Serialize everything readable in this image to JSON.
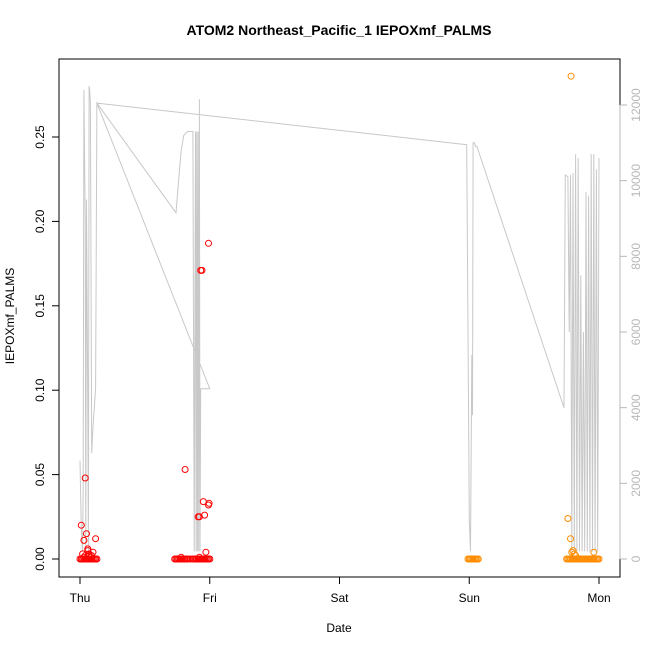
{
  "chart_data": {
    "type": "scatter",
    "title": "ATOM2 Northeast_Pacific_1 IEPOXmf_PALMS",
    "xlabel": "Date",
    "ylabel": "IEPOXmf_PALMS",
    "x_unit": "days since Thursday 00:00",
    "x_ticks": [
      {
        "label": "Thu",
        "value": 0
      },
      {
        "label": "Fri",
        "value": 1
      },
      {
        "label": "Sat",
        "value": 2
      },
      {
        "label": "Sun",
        "value": 3
      },
      {
        "label": "Mon",
        "value": 4
      }
    ],
    "ylim": [
      0,
      0.28
    ],
    "y_ticks": [
      "0.00",
      "0.05",
      "0.10",
      "0.15",
      "0.20",
      "0.25"
    ],
    "y2_label": "",
    "y2lim": [
      0,
      13000
    ],
    "y2_ticks": [
      "0",
      "2000",
      "4000",
      "6000",
      "8000",
      "10000",
      "12000"
    ],
    "colors": {
      "series_red": "#ff0000",
      "series_orange": "#ff8c00",
      "altitude": "#c8c8c8"
    },
    "series": [
      {
        "marker": "open-circle",
        "color": "#ff0000",
        "x": [
          0.0,
          0.01,
          0.02,
          0.03,
          0.04,
          0.05,
          0.06,
          0.07,
          0.08,
          0.09,
          0.1,
          0.11,
          0.12,
          0.13,
          0.01,
          0.02,
          0.03,
          0.04,
          0.05,
          0.06,
          0.07,
          0.08,
          0.09,
          0.12,
          0.04,
          0.06,
          0.1,
          0.03,
          0.07,
          0.73,
          0.74,
          0.75,
          0.76,
          0.77,
          0.78,
          0.79,
          0.8,
          0.81,
          0.82,
          0.83,
          0.85,
          0.87,
          0.88,
          0.89,
          0.9,
          0.91,
          0.92,
          0.93,
          0.94,
          0.95,
          0.96,
          0.97,
          0.98,
          0.99,
          1.0,
          0.78,
          0.81,
          0.91,
          0.92,
          0.93,
          0.94,
          0.95,
          0.96,
          0.99,
          0.995,
          0.92,
          0.99,
          0.97
        ],
        "y": [
          0,
          0,
          0,
          0,
          0,
          0,
          0,
          0,
          0,
          0,
          0,
          0,
          0,
          0,
          0.02,
          0.003,
          0.011,
          0.002,
          0.015,
          0.005,
          0.003,
          0.001,
          0.002,
          0.012,
          0.048,
          0.006,
          0.004,
          0.001,
          0.002,
          0,
          0,
          0,
          0,
          0,
          0,
          0,
          0,
          0,
          0,
          0,
          0,
          0,
          0,
          0,
          0,
          0,
          0,
          0,
          0,
          0,
          0,
          0,
          0,
          0,
          0,
          0.001,
          0.053,
          0.025,
          0.025,
          0.171,
          0.171,
          0.034,
          0.026,
          0.032,
          0.033,
          0.001,
          0.187,
          0.004
        ]
      },
      {
        "marker": "open-circle",
        "color": "#ff8c00",
        "x": [
          2.99,
          3.0,
          3.01,
          3.02,
          3.03,
          3.04,
          3.05,
          3.06,
          3.07,
          3.75,
          3.76,
          3.77,
          3.78,
          3.79,
          3.8,
          3.81,
          3.82,
          3.83,
          3.84,
          3.85,
          3.86,
          3.87,
          3.88,
          3.89,
          3.9,
          3.91,
          3.92,
          3.93,
          3.94,
          3.95,
          3.96,
          3.97,
          3.98,
          3.99,
          4.0,
          3.76,
          3.78,
          3.79,
          3.8,
          3.81,
          3.82,
          3.96,
          3.785
        ],
        "y": [
          0,
          0,
          0,
          0,
          0,
          0,
          0,
          0,
          0,
          0,
          0,
          0,
          0,
          0,
          0,
          0,
          0,
          0,
          0,
          0,
          0,
          0,
          0,
          0,
          0,
          0,
          0,
          0,
          0,
          0,
          0,
          0,
          0,
          0,
          0,
          0.024,
          0.012,
          0.004,
          0.005,
          0.003,
          0.002,
          0.004,
          0.286
        ]
      },
      {
        "type": "line",
        "axis": "right",
        "color": "#c8c8c8",
        "x": [
          0.0,
          0.01,
          0.02,
          0.025,
          0.03,
          0.04,
          0.045,
          0.05,
          0.06,
          0.065,
          0.07,
          0.075,
          0.08,
          0.09,
          0.1,
          0.12,
          0.13,
          0.74,
          0.76,
          0.78,
          0.8,
          0.83,
          0.87,
          0.88,
          0.89,
          0.895,
          0.9,
          0.905,
          0.91,
          0.915,
          0.92,
          0.925,
          0.93,
          0.94,
          0.95,
          0.955,
          0.96,
          0.965,
          0.97,
          0.975,
          0.98,
          0.99,
          1.0,
          0.13,
          2.98,
          3.0,
          3.01,
          3.02,
          3.025,
          3.03,
          3.04,
          3.05,
          3.06,
          3.06,
          3.73,
          3.74,
          3.76,
          3.77,
          3.78,
          3.79,
          3.8,
          3.81,
          3.82,
          3.83,
          3.84,
          3.85,
          3.86,
          3.87,
          3.88,
          3.89,
          3.9,
          3.91,
          3.92,
          3.93,
          3.94,
          3.95,
          3.96,
          3.97,
          3.98,
          3.99,
          4.0
        ],
        "y": [
          2600,
          800,
          200,
          2000,
          12400,
          9000,
          200,
          9500,
          4000,
          200,
          12500,
          12400,
          12050,
          2800,
          3500,
          4500,
          12050,
          9150,
          10000,
          10800,
          11200,
          11300,
          11300,
          200,
          11300,
          200,
          11300,
          200,
          11300,
          200,
          12150,
          200,
          4500,
          4500,
          4500,
          4500,
          4500,
          4500,
          4500,
          4500,
          4500,
          4500,
          4500,
          12050,
          10950,
          1000,
          200,
          5400,
          3800,
          11000,
          11000,
          10900,
          10900,
          10900,
          4000,
          10150,
          10100,
          6000,
          10150,
          200,
          10200,
          200,
          10700,
          200,
          10600,
          200,
          7500,
          200,
          6000,
          200,
          9700,
          200,
          9600,
          200,
          10700,
          200,
          10700,
          200,
          10300,
          200,
          10600
        ]
      }
    ]
  }
}
